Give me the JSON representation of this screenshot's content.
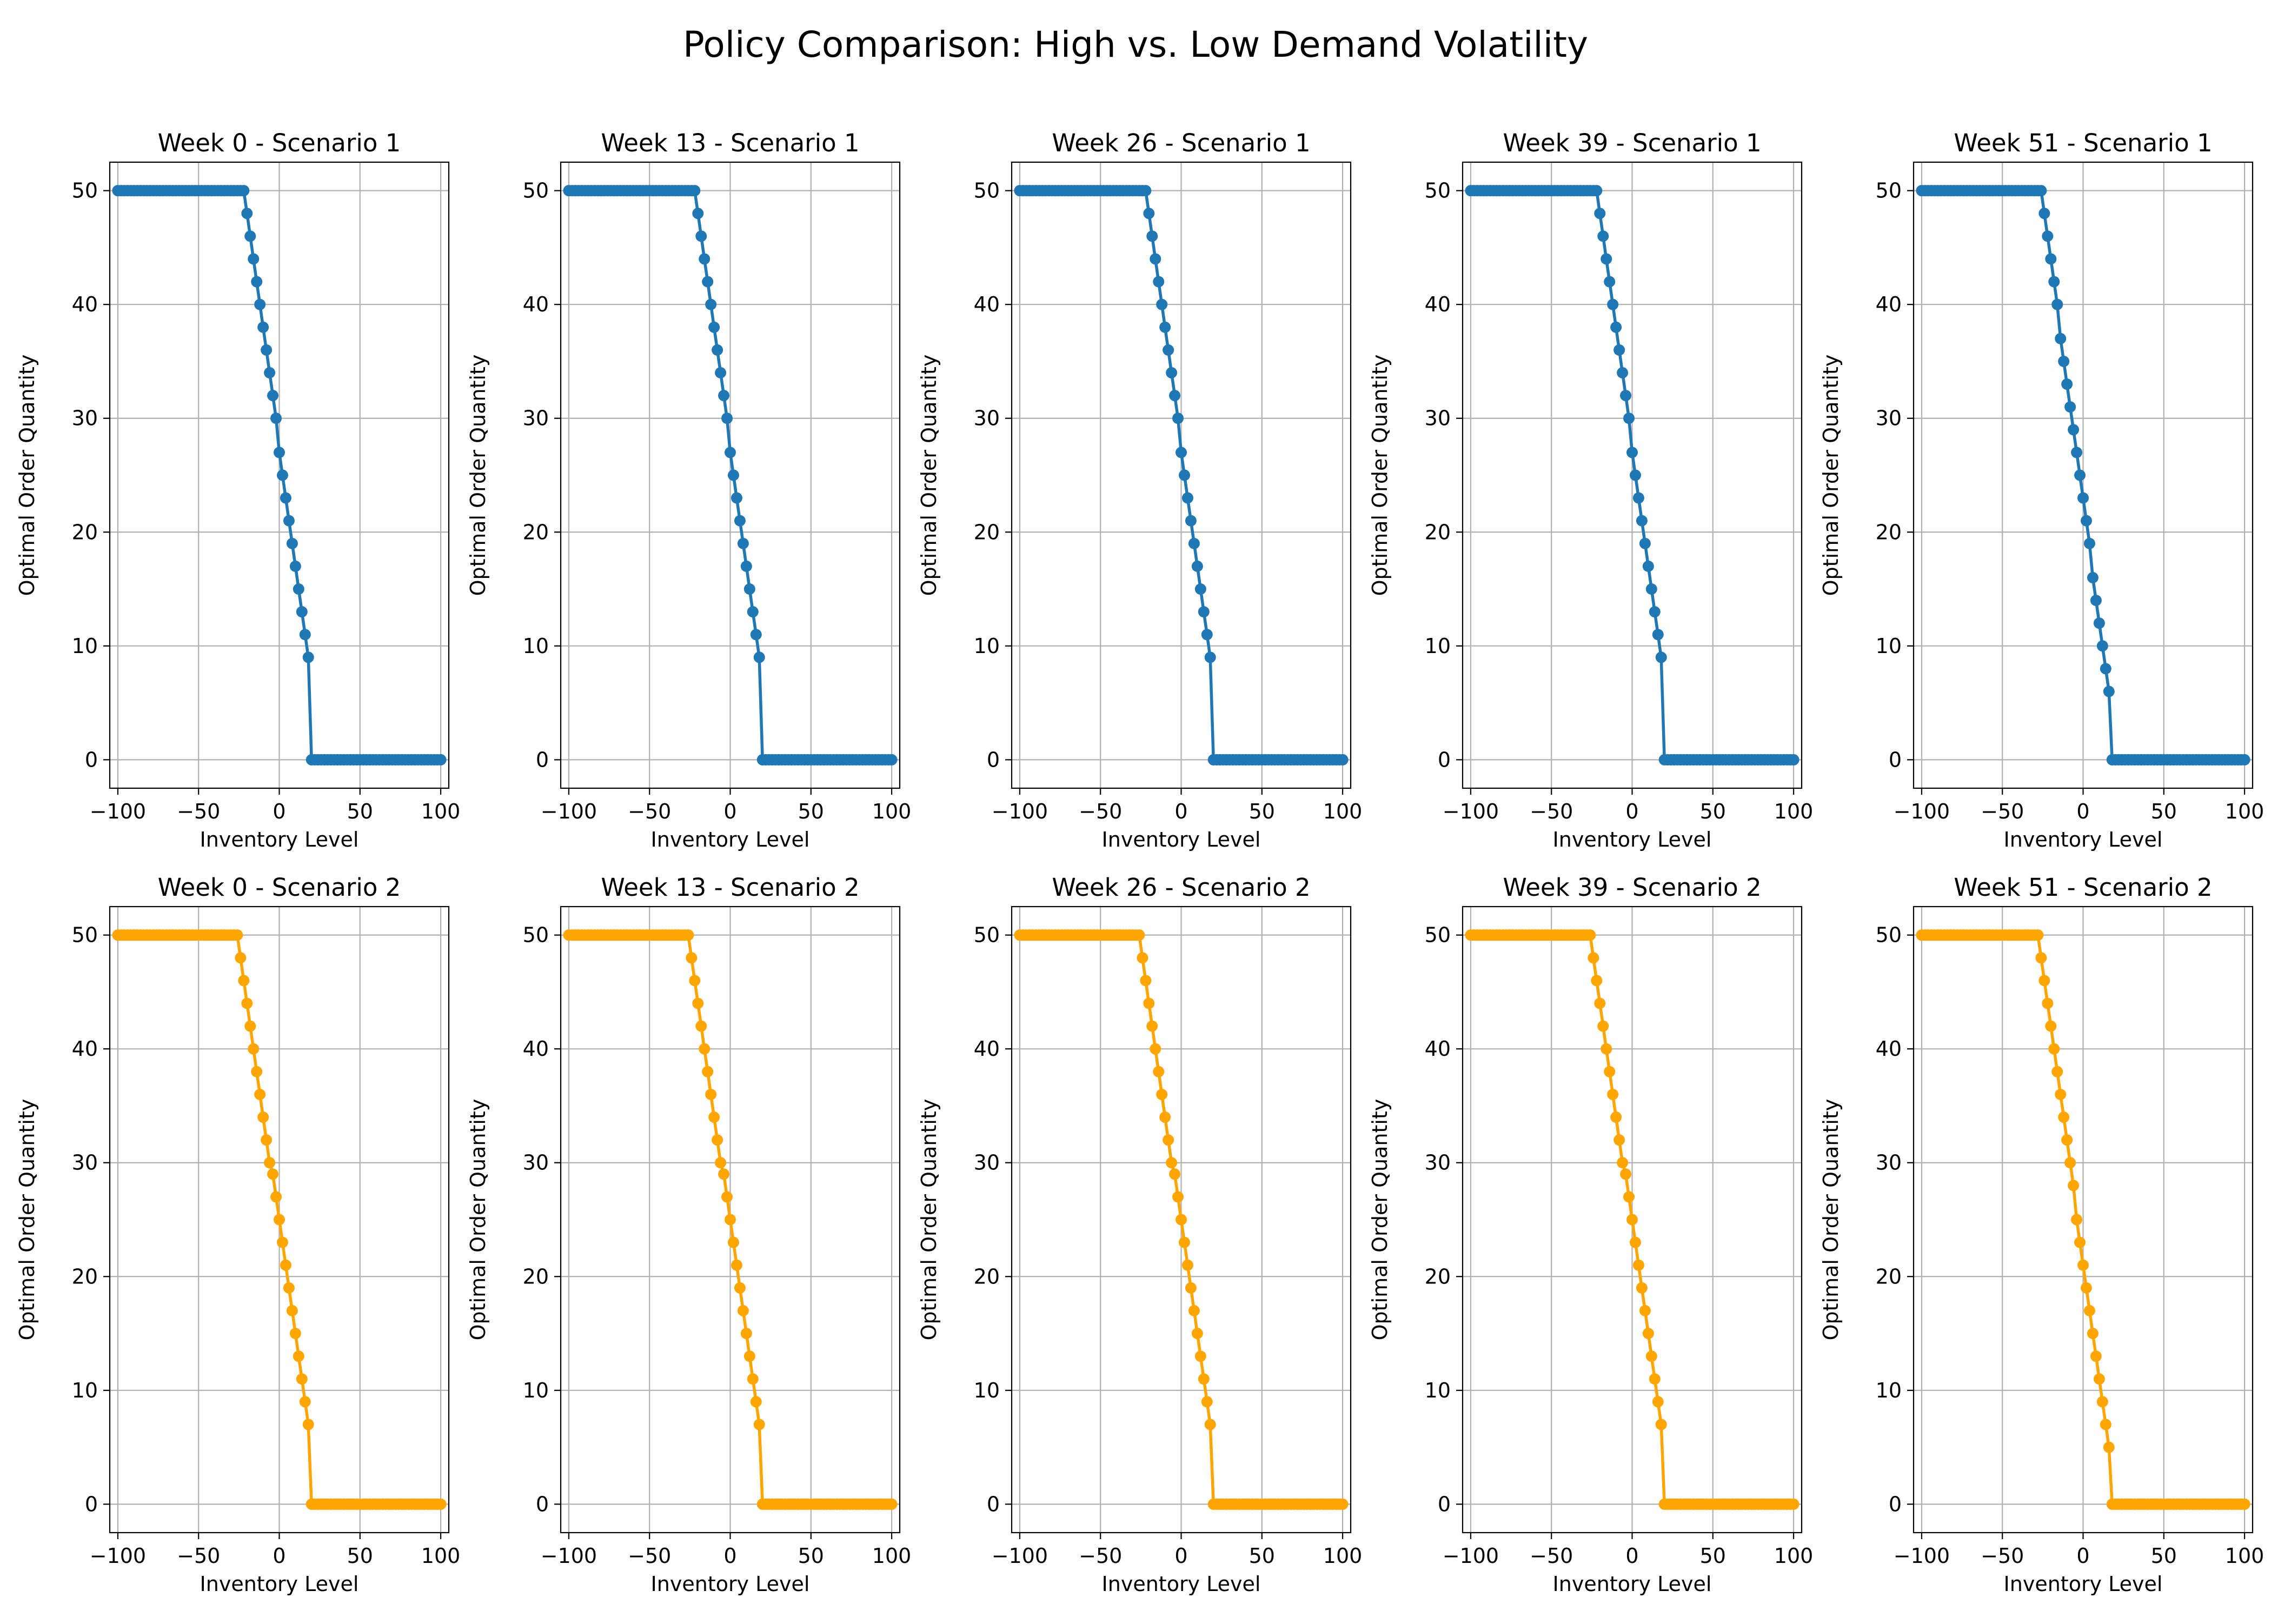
{
  "title": "Policy Comparison: High vs. Low Demand Volatility",
  "colors": {
    "scenario_1": "#1f77b4",
    "scenario_2": "#ffa500",
    "grid": "#b0b0b0"
  },
  "chart_data": [
    {
      "type": "line",
      "title": "Week 0 - Scenario 1",
      "xlabel": "Inventory Level",
      "ylabel": "Optimal Order Quantity",
      "xlim": [
        -105,
        105
      ],
      "ylim": [
        -2.5,
        52.5
      ],
      "xticks": [
        -100,
        -50,
        0,
        50,
        100
      ],
      "yticks": [
        0,
        10,
        20,
        30,
        40,
        50
      ],
      "grid": true,
      "color": "#1f77b4",
      "marker": "o",
      "x_range": [
        -100,
        100,
        2
      ],
      "policy": {
        "cap": 50,
        "knee": -22,
        "cutoff": 18,
        "jump_to": 9,
        "y_at_cutoff_low": 9
      }
    },
    {
      "type": "line",
      "title": "Week 13 - Scenario 1",
      "xlabel": "Inventory Level",
      "ylabel": "Optimal Order Quantity",
      "xlim": [
        -105,
        105
      ],
      "ylim": [
        -2.5,
        52.5
      ],
      "xticks": [
        -100,
        -50,
        0,
        50,
        100
      ],
      "yticks": [
        0,
        10,
        20,
        30,
        40,
        50
      ],
      "grid": true,
      "color": "#1f77b4",
      "marker": "o",
      "x_range": [
        -100,
        100,
        2
      ],
      "policy": {
        "cap": 50,
        "knee": -22,
        "cutoff": 18,
        "y_at_cutoff_low": 9
      }
    },
    {
      "type": "line",
      "title": "Week 26 - Scenario 1",
      "xlabel": "Inventory Level",
      "ylabel": "Optimal Order Quantity",
      "xlim": [
        -105,
        105
      ],
      "ylim": [
        -2.5,
        52.5
      ],
      "xticks": [
        -100,
        -50,
        0,
        50,
        100
      ],
      "yticks": [
        0,
        10,
        20,
        30,
        40,
        50
      ],
      "grid": true,
      "color": "#1f77b4",
      "marker": "o",
      "x_range": [
        -100,
        100,
        2
      ],
      "policy": {
        "cap": 50,
        "knee": -22,
        "cutoff": 18,
        "y_at_cutoff_low": 9
      }
    },
    {
      "type": "line",
      "title": "Week 39 - Scenario 1",
      "xlabel": "Inventory Level",
      "ylabel": "Optimal Order Quantity",
      "xlim": [
        -105,
        105
      ],
      "ylim": [
        -2.5,
        52.5
      ],
      "xticks": [
        -100,
        -50,
        0,
        50,
        100
      ],
      "yticks": [
        0,
        10,
        20,
        30,
        40,
        50
      ],
      "grid": true,
      "color": "#1f77b4",
      "marker": "o",
      "x_range": [
        -100,
        100,
        2
      ],
      "policy": {
        "cap": 50,
        "knee": -22,
        "cutoff": 18,
        "y_at_cutoff_low": 9
      }
    },
    {
      "type": "line",
      "title": "Week 51 - Scenario 1",
      "xlabel": "Inventory Level",
      "ylabel": "Optimal Order Quantity",
      "xlim": [
        -105,
        105
      ],
      "ylim": [
        -2.5,
        52.5
      ],
      "xticks": [
        -100,
        -50,
        0,
        50,
        100
      ],
      "yticks": [
        0,
        10,
        20,
        30,
        40,
        50
      ],
      "grid": true,
      "color": "#1f77b4",
      "marker": "o",
      "x_range": [
        -100,
        100,
        2
      ],
      "policy": {
        "cap": 50,
        "knee": -26,
        "cutoff": 16,
        "y_at_cutoff_low": 6
      }
    },
    {
      "type": "line",
      "title": "Week 0 - Scenario 2",
      "xlabel": "Inventory Level",
      "ylabel": "Optimal Order Quantity",
      "xlim": [
        -105,
        105
      ],
      "ylim": [
        -2.5,
        52.5
      ],
      "xticks": [
        -100,
        -50,
        0,
        50,
        100
      ],
      "yticks": [
        0,
        10,
        20,
        30,
        40,
        50
      ],
      "grid": true,
      "color": "#ffa500",
      "marker": "o",
      "x_range": [
        -100,
        100,
        2
      ],
      "policy": {
        "cap": 50,
        "knee": -26,
        "cutoff": 18,
        "y_at_cutoff_low": 7
      }
    },
    {
      "type": "line",
      "title": "Week 13 - Scenario 2",
      "xlabel": "Inventory Level",
      "ylabel": "Optimal Order Quantity",
      "xlim": [
        -105,
        105
      ],
      "ylim": [
        -2.5,
        52.5
      ],
      "xticks": [
        -100,
        -50,
        0,
        50,
        100
      ],
      "yticks": [
        0,
        10,
        20,
        30,
        40,
        50
      ],
      "grid": true,
      "color": "#ffa500",
      "marker": "o",
      "x_range": [
        -100,
        100,
        2
      ],
      "policy": {
        "cap": 50,
        "knee": -26,
        "cutoff": 18,
        "y_at_cutoff_low": 7
      }
    },
    {
      "type": "line",
      "title": "Week 26 - Scenario 2",
      "xlabel": "Inventory Level",
      "ylabel": "Optimal Order Quantity",
      "xlim": [
        -105,
        105
      ],
      "ylim": [
        -2.5,
        52.5
      ],
      "xticks": [
        -100,
        -50,
        0,
        50,
        100
      ],
      "yticks": [
        0,
        10,
        20,
        30,
        40,
        50
      ],
      "grid": true,
      "color": "#ffa500",
      "marker": "o",
      "x_range": [
        -100,
        100,
        2
      ],
      "policy": {
        "cap": 50,
        "knee": -26,
        "cutoff": 18,
        "y_at_cutoff_low": 7
      }
    },
    {
      "type": "line",
      "title": "Week 39 - Scenario 2",
      "xlabel": "Inventory Level",
      "ylabel": "Optimal Order Quantity",
      "xlim": [
        -105,
        105
      ],
      "ylim": [
        -2.5,
        52.5
      ],
      "xticks": [
        -100,
        -50,
        0,
        50,
        100
      ],
      "yticks": [
        0,
        10,
        20,
        30,
        40,
        50
      ],
      "grid": true,
      "color": "#ffa500",
      "marker": "o",
      "x_range": [
        -100,
        100,
        2
      ],
      "policy": {
        "cap": 50,
        "knee": -26,
        "cutoff": 18,
        "y_at_cutoff_low": 7
      }
    },
    {
      "type": "line",
      "title": "Week 51 - Scenario 2",
      "xlabel": "Inventory Level",
      "ylabel": "Optimal Order Quantity",
      "xlim": [
        -105,
        105
      ],
      "ylim": [
        -2.5,
        52.5
      ],
      "xticks": [
        -100,
        -50,
        0,
        50,
        100
      ],
      "yticks": [
        0,
        10,
        20,
        30,
        40,
        50
      ],
      "grid": true,
      "color": "#ffa500",
      "marker": "o",
      "x_range": [
        -100,
        100,
        2
      ],
      "policy": {
        "cap": 50,
        "knee": -28,
        "cutoff": 16,
        "y_at_cutoff_low": 5
      }
    }
  ]
}
